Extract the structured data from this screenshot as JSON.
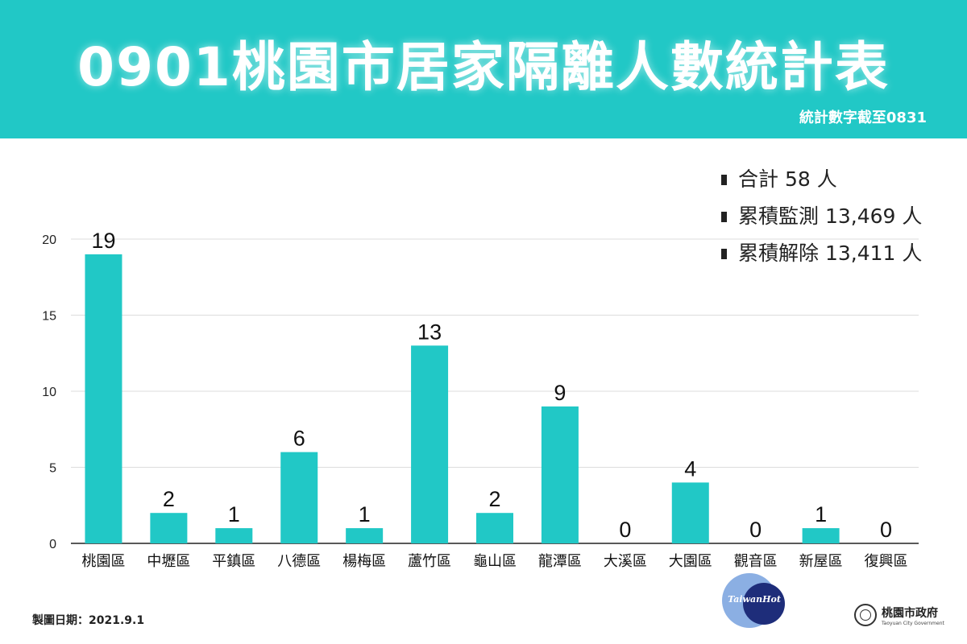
{
  "header": {
    "title": "0901桃園市居家隔離人數統計表",
    "note": "統計數字截至0831",
    "bg_color": "#21c8c6"
  },
  "summary": [
    "合計 58 人",
    "累積監測 13,469 人",
    "累積解除 13,411 人"
  ],
  "chart_data": {
    "type": "bar",
    "categories": [
      "桃園區",
      "中壢區",
      "平鎮區",
      "八德區",
      "楊梅區",
      "蘆竹區",
      "龜山區",
      "龍潭區",
      "大溪區",
      "大園區",
      "觀音區",
      "新屋區",
      "復興區"
    ],
    "values": [
      19,
      2,
      1,
      6,
      1,
      13,
      2,
      9,
      0,
      4,
      0,
      1,
      0
    ],
    "ylim": [
      0,
      20
    ],
    "yticks": [
      0,
      5,
      10,
      15,
      20
    ],
    "grid": true,
    "bar_color": "#21c8c6"
  },
  "footer": {
    "date": "製圖日期：2021.9.1",
    "media_logo": "TaiwanHot",
    "gov_name": "桃園市政府",
    "gov_name_en": "Taoyuan City Government"
  }
}
